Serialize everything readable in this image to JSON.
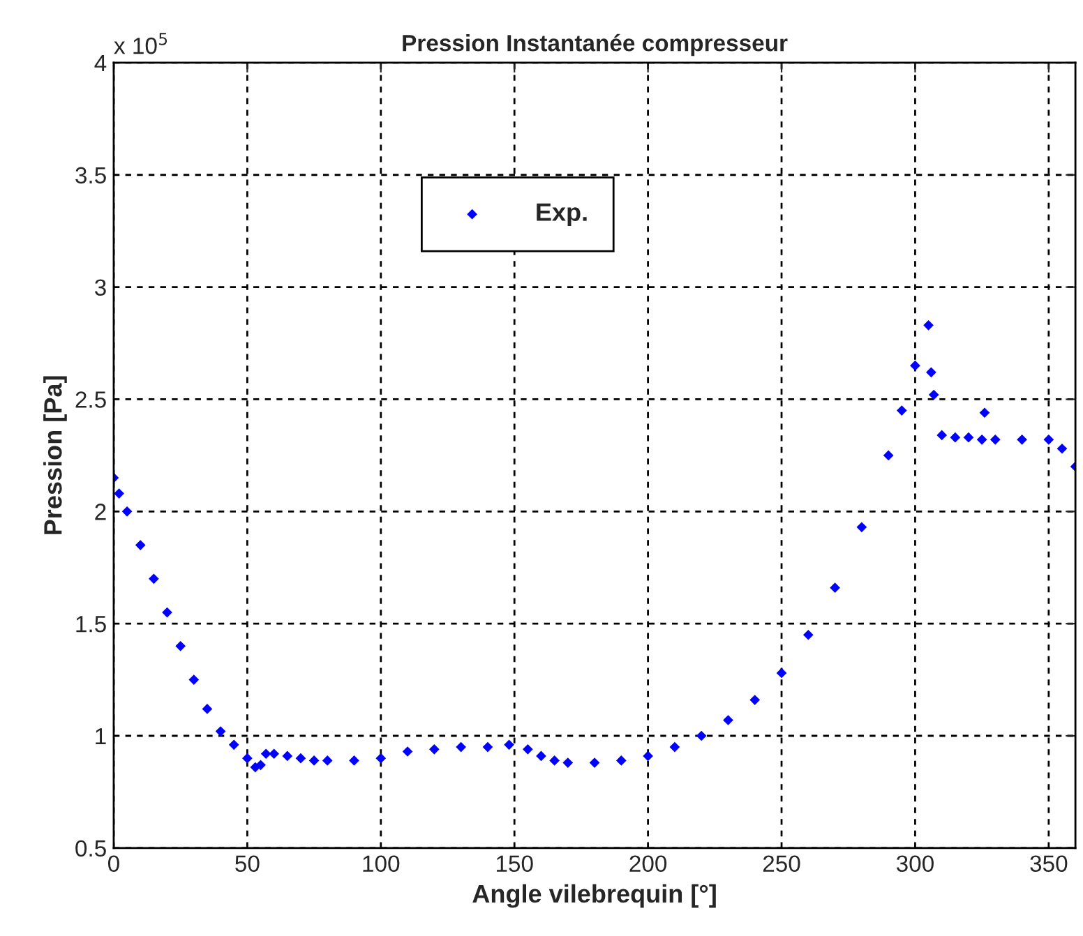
{
  "chart_data": {
    "type": "scatter",
    "title": "Pression Instantanée compresseur",
    "xlabel": "Angle vilebrequin [°]",
    "ylabel": "Pression [Pa]",
    "annotations": [
      "x 10$^{5}$"
    ],
    "xlim": [
      0,
      360
    ],
    "xticks": [
      0,
      50,
      100,
      150,
      200,
      250,
      300,
      350
    ],
    "ylim": [
      0.5,
      4
    ],
    "yticks": [
      0.5,
      1,
      1.5,
      2,
      2.5,
      3,
      3.5,
      4
    ],
    "grid": true,
    "legend": "top",
    "marker": "diamond",
    "series": [
      {
        "name": "Exp.",
        "color": "#0000ff",
        "x": [
          0,
          2,
          5,
          10,
          15,
          20,
          25,
          30,
          35,
          40,
          45,
          50,
          53,
          55,
          57,
          60,
          65,
          70,
          75,
          80,
          90,
          100,
          110,
          120,
          130,
          140,
          148,
          155,
          160,
          165,
          170,
          180,
          190,
          200,
          210,
          220,
          230,
          240,
          250,
          260,
          270,
          280,
          290,
          295,
          300,
          305,
          306,
          307,
          310,
          315,
          320,
          325,
          326,
          330,
          340,
          350,
          355,
          360
        ],
        "values": [
          2.15,
          2.08,
          2.0,
          1.85,
          1.7,
          1.55,
          1.4,
          1.25,
          1.12,
          1.02,
          0.96,
          0.9,
          0.86,
          0.87,
          0.92,
          0.92,
          0.91,
          0.9,
          0.89,
          0.89,
          0.89,
          0.9,
          0.93,
          0.94,
          0.95,
          0.95,
          0.96,
          0.94,
          0.91,
          0.89,
          0.88,
          0.88,
          0.89,
          0.91,
          0.95,
          1.0,
          1.07,
          1.16,
          1.28,
          1.45,
          1.66,
          1.93,
          2.25,
          2.45,
          2.65,
          2.83,
          2.62,
          2.52,
          2.34,
          2.33,
          2.33,
          2.32,
          2.44,
          2.32,
          2.32,
          2.32,
          2.28,
          2.2
        ]
      }
    ]
  }
}
